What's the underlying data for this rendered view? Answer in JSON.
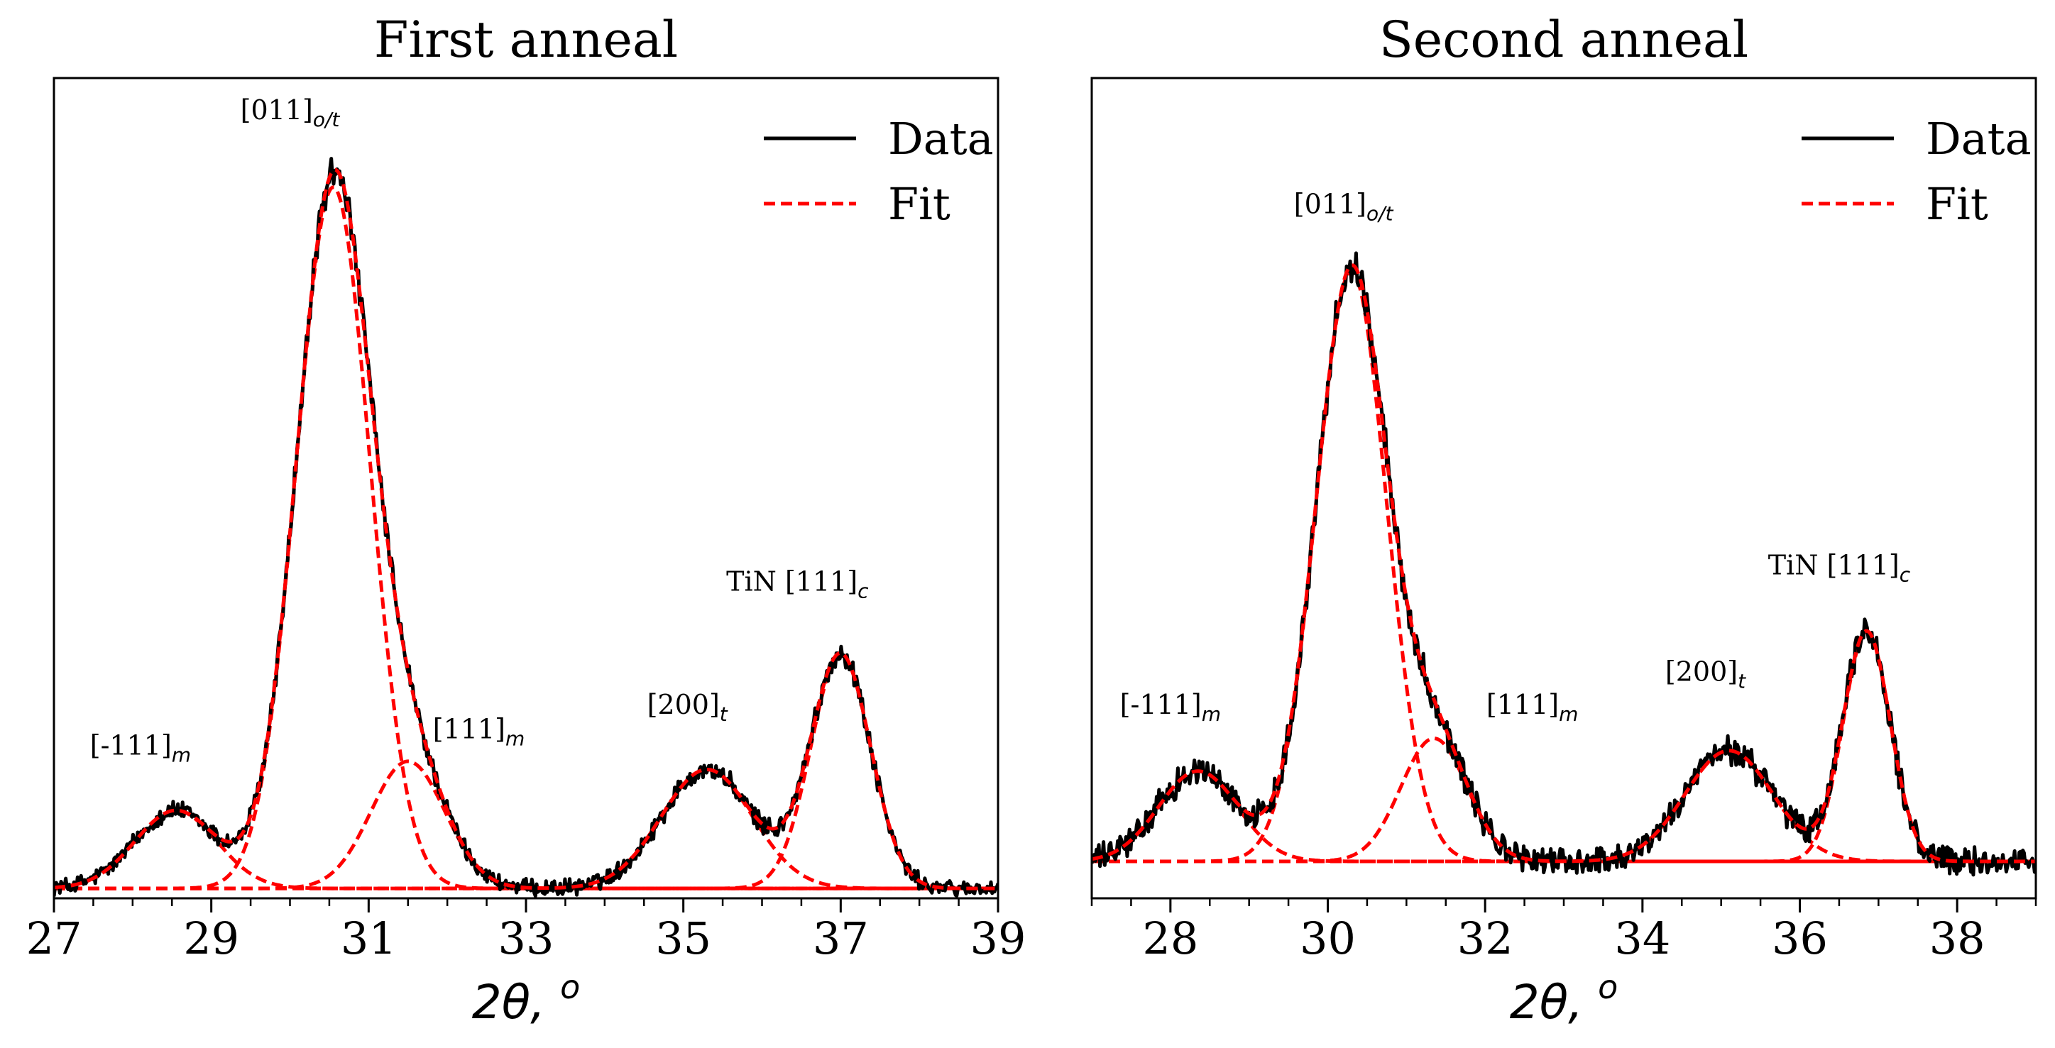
{
  "chart_data": [
    {
      "type": "line",
      "title": "First anneal",
      "xlabel": "2θ, ",
      "xlabel_sup": "o",
      "xlim": [
        27,
        39
      ],
      "xticks": [
        27,
        29,
        31,
        33,
        35,
        37,
        39
      ],
      "minor_xtick_step": 0.5,
      "ylim": [
        0,
        1.0
      ],
      "yticks_shown": false,
      "legend": {
        "placement": "top-right",
        "entries": [
          {
            "label": "Data",
            "color": "#000000",
            "style": "solid"
          },
          {
            "label": "Fit",
            "color": "#ff0000",
            "style": "dashed"
          }
        ]
      },
      "baseline": 0.012,
      "peaks": [
        {
          "label": "[-111]",
          "sub": "m",
          "center": 28.55,
          "sigma": 0.52,
          "amplitude": 0.095,
          "label_x": 28.1,
          "label_y": 0.175
        },
        {
          "label": "[011]",
          "sub": "o/t",
          "center": 30.55,
          "sigma": 0.47,
          "amplitude": 0.855,
          "label_x": 30.0,
          "label_y": 0.95
        },
        {
          "label": "[111]",
          "sub": "m",
          "center": 31.5,
          "sigma": 0.47,
          "amplitude": 0.155,
          "label_x": 32.4,
          "label_y": 0.195
        },
        {
          "label": "[200]",
          "sub": "t",
          "center": 35.3,
          "sigma": 0.58,
          "amplitude": 0.145,
          "label_x": 35.05,
          "label_y": 0.225
        },
        {
          "label": "TiN [111]",
          "sub": "c",
          "center": 37.0,
          "sigma": 0.38,
          "amplitude": 0.285,
          "label_x": 36.45,
          "label_y": 0.375
        }
      ]
    },
    {
      "type": "line",
      "title": "Second anneal",
      "xlabel": "2θ, ",
      "xlabel_sup": "o",
      "xlim": [
        27,
        39
      ],
      "xticks": [
        28,
        30,
        32,
        34,
        36,
        38
      ],
      "minor_xtick_step": 0.5,
      "ylim": [
        0,
        1.0
      ],
      "yticks_shown": false,
      "legend": {
        "placement": "top-right",
        "entries": [
          {
            "label": "Data",
            "color": "#000000",
            "style": "solid"
          },
          {
            "label": "Fit",
            "color": "#ff0000",
            "style": "dashed"
          }
        ]
      },
      "baseline": 0.045,
      "peaks": [
        {
          "label": "[-111]",
          "sub": "m",
          "center": 28.35,
          "sigma": 0.5,
          "amplitude": 0.11,
          "label_x": 28.0,
          "label_y": 0.225
        },
        {
          "label": "[011]",
          "sub": "o/t",
          "center": 30.3,
          "sigma": 0.45,
          "amplitude": 0.72,
          "label_x": 30.2,
          "label_y": 0.835
        },
        {
          "label": "[111]",
          "sub": "m",
          "center": 31.35,
          "sigma": 0.42,
          "amplitude": 0.15,
          "label_x": 32.6,
          "label_y": 0.225
        },
        {
          "label": "[200]",
          "sub": "t",
          "center": 35.1,
          "sigma": 0.56,
          "amplitude": 0.135,
          "label_x": 34.8,
          "label_y": 0.265
        },
        {
          "label": "TiN [111]",
          "sub": "c",
          "center": 36.85,
          "sigma": 0.3,
          "amplitude": 0.28,
          "label_x": 36.5,
          "label_y": 0.395
        }
      ]
    }
  ]
}
